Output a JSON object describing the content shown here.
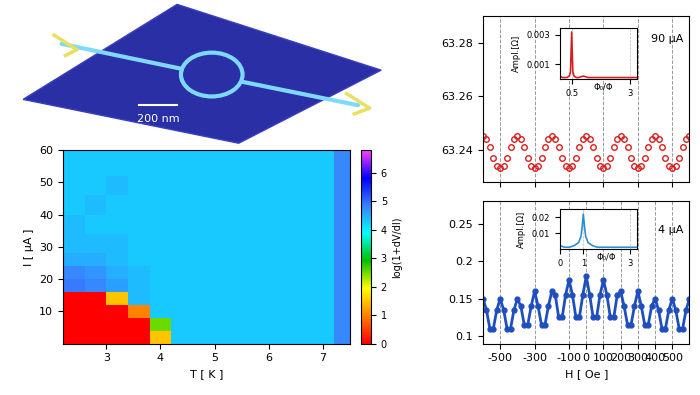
{
  "chart_data": [
    {
      "type": "heatmap",
      "xlabel": "T [ K ]",
      "ylabel": "I [ μA ]",
      "x_edges": [
        2.2,
        2.6,
        3.0,
        3.4,
        3.8,
        4.2,
        4.6,
        5.0,
        5.6,
        6.2,
        6.8,
        7.2,
        7.5
      ],
      "y_edges": [
        0,
        4,
        8,
        12,
        16,
        20,
        24,
        28,
        34,
        40,
        46,
        52,
        60
      ],
      "cells": [
        [
          0,
          0,
          0,
          0,
          1.5,
          4.3,
          4.3,
          4.3,
          4.3,
          4.3,
          4.3,
          4.8
        ],
        [
          0,
          0,
          0,
          0,
          2.5,
          4.3,
          4.3,
          4.3,
          4.3,
          4.3,
          4.3,
          4.8
        ],
        [
          0,
          0,
          0,
          1.0,
          4.3,
          4.3,
          4.3,
          4.3,
          4.3,
          4.3,
          4.3,
          4.8
        ],
        [
          0,
          0,
          1.5,
          4.4,
          4.3,
          4.3,
          4.3,
          4.3,
          4.3,
          4.3,
          4.3,
          4.8
        ],
        [
          4.9,
          4.8,
          4.6,
          4.4,
          4.3,
          4.3,
          4.3,
          4.3,
          4.3,
          4.3,
          4.3,
          4.8
        ],
        [
          4.8,
          4.7,
          4.5,
          4.4,
          4.3,
          4.3,
          4.3,
          4.3,
          4.3,
          4.3,
          4.3,
          4.8
        ],
        [
          4.5,
          4.5,
          4.4,
          4.3,
          4.3,
          4.3,
          4.3,
          4.3,
          4.3,
          4.3,
          4.3,
          4.8
        ],
        [
          4.4,
          4.4,
          4.4,
          4.3,
          4.3,
          4.3,
          4.3,
          4.3,
          4.3,
          4.3,
          4.3,
          4.8
        ],
        [
          4.4,
          4.3,
          4.3,
          4.3,
          4.3,
          4.3,
          4.3,
          4.3,
          4.3,
          4.3,
          4.3,
          4.8
        ],
        [
          4.3,
          4.4,
          4.3,
          4.3,
          4.3,
          4.3,
          4.3,
          4.3,
          4.3,
          4.3,
          4.3,
          4.8
        ],
        [
          4.3,
          4.3,
          4.4,
          4.3,
          4.3,
          4.3,
          4.3,
          4.3,
          4.3,
          4.3,
          4.3,
          4.8
        ],
        [
          4.3,
          4.3,
          4.3,
          4.3,
          4.3,
          4.3,
          4.3,
          4.3,
          4.3,
          4.3,
          4.3,
          4.8
        ]
      ],
      "xlim": [
        2.2,
        7.5
      ],
      "ylim": [
        0,
        60
      ],
      "xticks": [
        3,
        4,
        5,
        6,
        7
      ],
      "yticks": [
        10,
        20,
        30,
        40,
        50,
        60
      ],
      "colorbar": {
        "label": "log(1+dV/dI)",
        "range": [
          0,
          6.8
        ],
        "ticks": [
          0,
          1,
          2,
          3,
          4,
          5,
          6
        ]
      }
    },
    {
      "type": "scatter",
      "annotation": "90 μA",
      "x": [
        -600,
        -580,
        -560,
        -540,
        -520,
        -500,
        -480,
        -460,
        -440,
        -420,
        -400,
        -380,
        -360,
        -340,
        -320,
        -300,
        -280,
        -260,
        -240,
        -220,
        -200,
        -180,
        -160,
        -140,
        -120,
        -100,
        -80,
        -60,
        -40,
        -20,
        0,
        20,
        40,
        60,
        80,
        100,
        120,
        140,
        160,
        180,
        200,
        220,
        240,
        260,
        280,
        300,
        320,
        340,
        360,
        380,
        400,
        420,
        440,
        460,
        480,
        500,
        520,
        540,
        560,
        580,
        600
      ],
      "series": [
        {
          "color": "#d62020",
          "marker": "circle",
          "values": [
            63.245,
            63.244,
            63.241,
            63.237,
            63.234,
            63.233,
            63.234,
            63.237,
            63.241,
            63.244,
            63.245,
            63.244,
            63.241,
            63.237,
            63.234,
            63.233,
            63.234,
            63.237,
            63.241,
            63.244,
            63.245,
            63.244,
            63.241,
            63.237,
            63.234,
            63.233,
            63.234,
            63.237,
            63.241,
            63.244,
            63.245,
            63.244,
            63.241,
            63.237,
            63.234,
            63.233,
            63.234,
            63.237,
            63.241,
            63.244,
            63.245,
            63.244,
            63.241,
            63.237,
            63.234,
            63.233,
            63.234,
            63.237,
            63.241,
            63.244,
            63.245,
            63.244,
            63.241,
            63.237,
            63.234,
            63.233,
            63.234,
            63.237,
            63.241,
            63.244,
            63.245
          ]
        }
      ],
      "xlim": [
        -600,
        600
      ],
      "ylim": [
        63.228,
        63.29
      ],
      "xticks": [
        -500,
        -300,
        -100,
        100,
        300,
        500
      ],
      "yticks": [
        63.24,
        63.26,
        63.28
      ],
      "grid": true,
      "tick_labels": "y"
    },
    {
      "type": "line",
      "xlabel": "Φ₀/Φ",
      "ylabel": "Ampl.[Ω]",
      "x": [
        0,
        0.1,
        0.2,
        0.3,
        0.4,
        0.45,
        0.5,
        0.55,
        0.6,
        0.7,
        0.8,
        1,
        1.2,
        1.5,
        2,
        2.5,
        3,
        3.3
      ],
      "values": [
        0.0002,
        0.0001,
        0.0001,
        0.0001,
        0.0002,
        0.0005,
        0.0032,
        0.0005,
        0.0002,
        0.0001,
        0.0001,
        0.0002,
        0.0001,
        0.0001,
        0.0001,
        0.0001,
        0.0001,
        0.0001
      ],
      "color": "#d62020",
      "xlim": [
        0,
        3.3
      ],
      "ylim": [
        0,
        0.0035
      ],
      "xticks": [
        0.5,
        3
      ],
      "yticks": [
        0.001,
        0.003
      ],
      "grid": true
    },
    {
      "type": "line",
      "annotation": "4 μA",
      "xlabel": "H [ Oe ]",
      "x": [
        -600,
        -580,
        -560,
        -540,
        -520,
        -500,
        -480,
        -460,
        -440,
        -420,
        -400,
        -380,
        -360,
        -340,
        -320,
        -300,
        -280,
        -260,
        -240,
        -220,
        -200,
        -180,
        -160,
        -140,
        -120,
        -100,
        -80,
        -60,
        -40,
        -20,
        0,
        20,
        40,
        60,
        80,
        100,
        120,
        140,
        160,
        180,
        200,
        220,
        240,
        260,
        280,
        300,
        320,
        340,
        360,
        380,
        400,
        420,
        440,
        460,
        480,
        500,
        520,
        540,
        560,
        580,
        600
      ],
      "series": [
        {
          "color": "#1f4fbf",
          "marker": "circle",
          "values": [
            0.15,
            0.135,
            0.11,
            0.11,
            0.135,
            0.15,
            0.135,
            0.11,
            0.11,
            0.135,
            0.15,
            0.14,
            0.115,
            0.115,
            0.14,
            0.16,
            0.14,
            0.115,
            0.115,
            0.14,
            0.16,
            0.155,
            0.125,
            0.125,
            0.155,
            0.175,
            0.155,
            0.125,
            0.125,
            0.155,
            0.18,
            0.155,
            0.125,
            0.125,
            0.155,
            0.175,
            0.155,
            0.125,
            0.125,
            0.155,
            0.16,
            0.14,
            0.115,
            0.115,
            0.14,
            0.16,
            0.14,
            0.115,
            0.115,
            0.14,
            0.15,
            0.135,
            0.11,
            0.11,
            0.135,
            0.15,
            0.135,
            0.11,
            0.11,
            0.135,
            0.15
          ]
        }
      ],
      "xlim": [
        -600,
        600
      ],
      "ylim": [
        0.09,
        0.28
      ],
      "xticks": [
        -500,
        -300,
        -100,
        0,
        100,
        200,
        300,
        400,
        500
      ],
      "yticks": [
        0.1,
        0.15,
        0.2,
        0.25
      ],
      "grid": true
    },
    {
      "type": "line",
      "xlabel": "Φ₀/Φ",
      "ylabel": "Ampl.[Ω]",
      "x": [
        0,
        0.2,
        0.4,
        0.6,
        0.8,
        0.9,
        0.95,
        1,
        1.05,
        1.1,
        1.2,
        1.4,
        1.6,
        2,
        2.5,
        3,
        3.3
      ],
      "values": [
        0.002,
        0.001,
        0.001,
        0.002,
        0.004,
        0.008,
        0.014,
        0.022,
        0.014,
        0.008,
        0.004,
        0.002,
        0.001,
        0.001,
        0.001,
        0.001,
        0.001
      ],
      "color": "#2a8fd0",
      "xlim": [
        0,
        3.3
      ],
      "ylim": [
        0,
        0.025
      ],
      "xticks": [
        0,
        1,
        3
      ],
      "yticks": [
        0.01,
        0.02
      ],
      "grid": true
    }
  ],
  "diagram": {
    "scale_bar": "200 nm"
  }
}
